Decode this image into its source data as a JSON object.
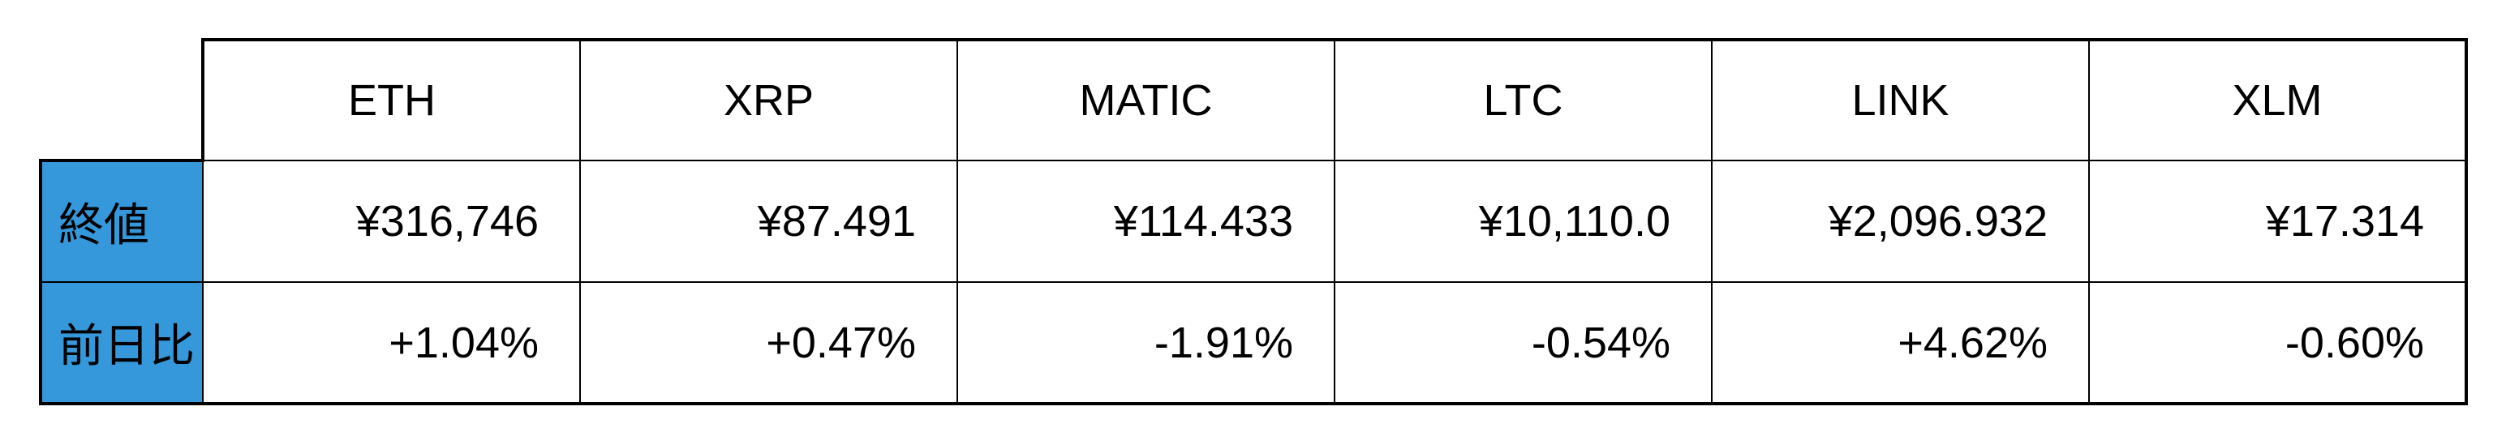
{
  "page": {
    "background": "#FFFFFF"
  },
  "table": {
    "columns": [
      "ETH",
      "XRP",
      "MATIC",
      "LTC",
      "LINK",
      "XLM"
    ],
    "rows": [
      {
        "label": "終値",
        "values": [
          "¥316,746",
          "¥87.491",
          "¥114.433",
          "¥10,110.0",
          "¥2,096.932",
          "¥17.314"
        ]
      },
      {
        "label": "前日比",
        "values": [
          "+1.04%",
          "+0.47%",
          "-1.91%",
          "-0.54%",
          "+4.62%",
          "-0.60%"
        ]
      }
    ],
    "colors": {
      "row_header_bg": "#3498DB",
      "border": "#000000",
      "text": "#000000"
    }
  },
  "chart_data": {
    "type": "table",
    "columns": [
      "ETH",
      "XRP",
      "MATIC",
      "LTC",
      "LINK",
      "XLM"
    ],
    "row_labels": [
      "終値",
      "前日比"
    ],
    "cells": [
      [
        "¥316,746",
        "¥87.491",
        "¥114.433",
        "¥10,110.0",
        "¥2,096.932",
        "¥17.314"
      ],
      [
        "+1.04%",
        "+0.47%",
        "-1.91%",
        "-0.54%",
        "+4.62%",
        "-0.60%"
      ]
    ],
    "close_price_jpy": [
      316746,
      87.491,
      114.433,
      10110.0,
      2096.932,
      17.314
    ],
    "day_over_day_change_pct": [
      1.04,
      0.47,
      -1.91,
      -0.54,
      4.62,
      -0.6
    ]
  }
}
